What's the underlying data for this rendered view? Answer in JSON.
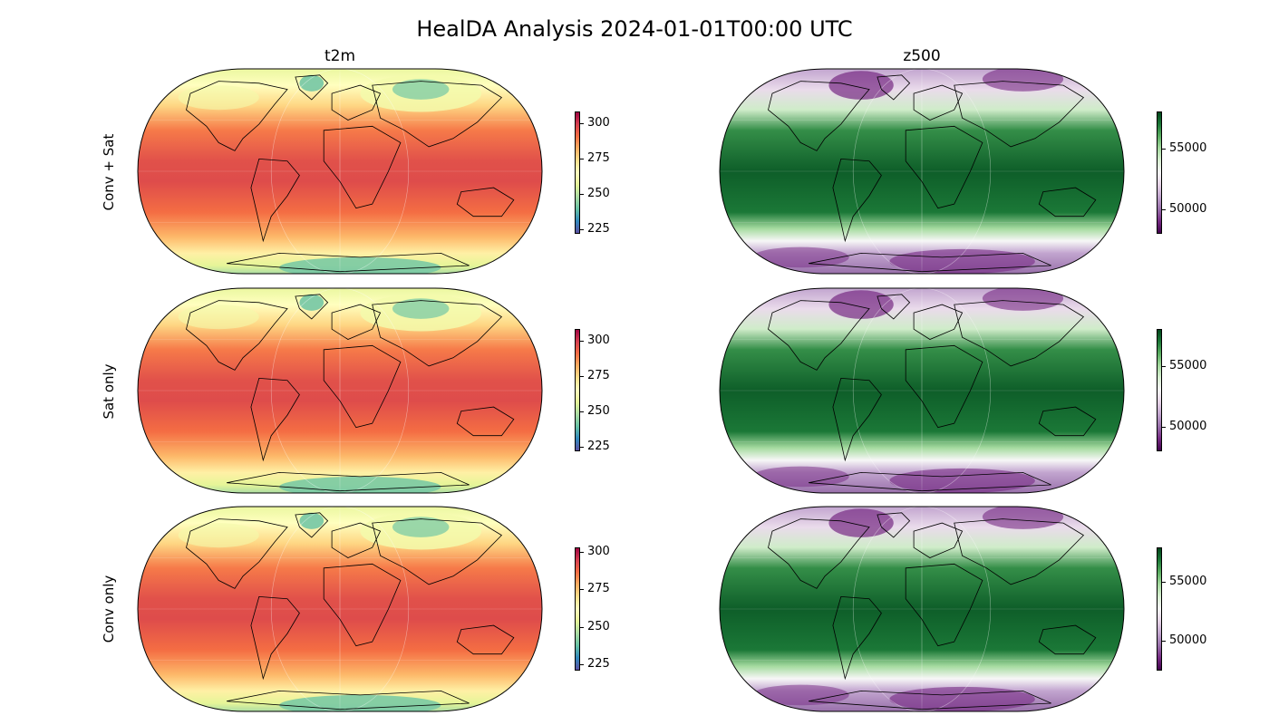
{
  "title": "HealDA Analysis 2024-01-01T00:00 UTC",
  "columns": [
    {
      "variable": "t2m",
      "colormap": "Spectral_r",
      "colorbar_ticks": [
        [
          "300",
          "275",
          "250",
          "225"
        ],
        [
          "300",
          "275",
          "250",
          "225"
        ],
        [
          "300",
          "275",
          "250",
          "225"
        ]
      ],
      "colorbar_tick_values": [
        300,
        275,
        250,
        225
      ],
      "colorbar_range": [
        [
          222,
          308
        ],
        [
          222,
          308
        ],
        [
          221,
          303
        ]
      ]
    },
    {
      "variable": "z500",
      "colormap": "PRGn",
      "colorbar_ticks": [
        [
          "55000",
          "50000"
        ],
        [
          "55000",
          "50000"
        ],
        [
          "55000",
          "50000"
        ]
      ],
      "colorbar_tick_values": [
        55000,
        50000
      ],
      "colorbar_range": [
        [
          48000,
          58000
        ],
        [
          48000,
          58000
        ],
        [
          47400,
          58000
        ]
      ]
    }
  ],
  "rows": [
    "Conv + Sat",
    "Sat only",
    "Conv only"
  ],
  "projection": "Robinson",
  "colors": {
    "t2m": [
      "#5e4fa2",
      "#3288bd",
      "#66c2a5",
      "#abdda4",
      "#e6f598",
      "#ffffbf",
      "#fee08b",
      "#fdae61",
      "#f46d43",
      "#d53e4f",
      "#9e0142"
    ],
    "z500": [
      "#40004b",
      "#762a83",
      "#9970ab",
      "#c2a5cf",
      "#e7d4e8",
      "#f7f7f7",
      "#d9f0d3",
      "#a6dba0",
      "#5aae61",
      "#1b7837",
      "#00441b"
    ]
  }
}
